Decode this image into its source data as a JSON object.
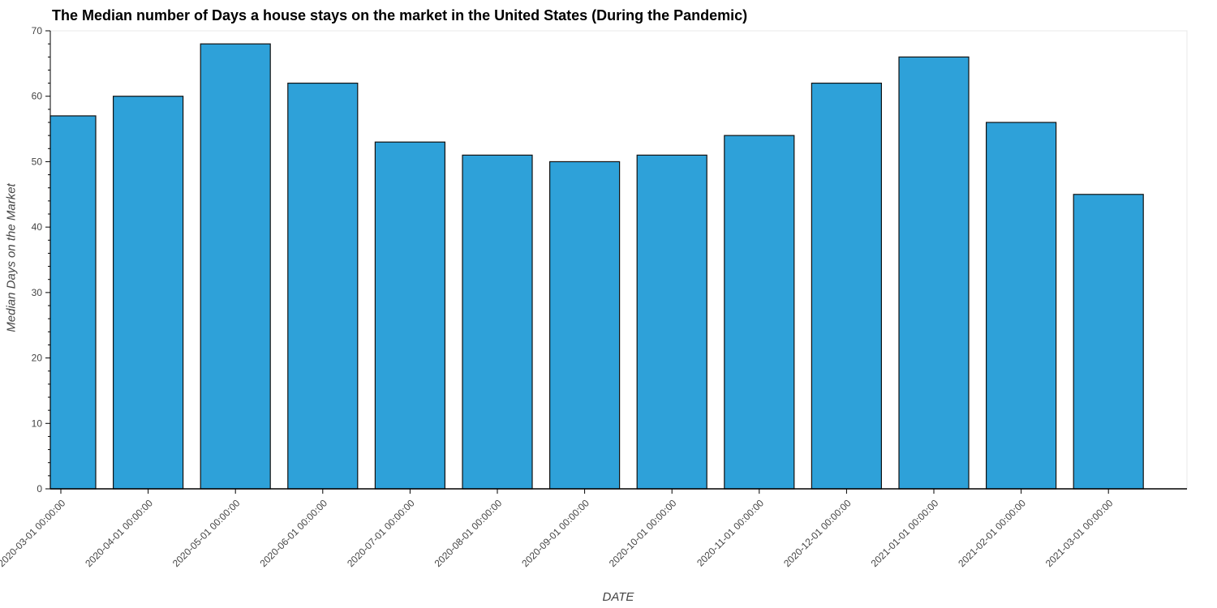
{
  "chart_data": {
    "type": "bar",
    "title": "The Median number of Days a house stays on the market in the United States (During the Pandemic)",
    "xlabel": "DATE",
    "ylabel": "Median Days on the Market",
    "categories": [
      "2020-03-01 00:00:00",
      "2020-04-01 00:00:00",
      "2020-05-01 00:00:00",
      "2020-06-01 00:00:00",
      "2020-07-01 00:00:00",
      "2020-08-01 00:00:00",
      "2020-09-01 00:00:00",
      "2020-10-01 00:00:00",
      "2020-11-01 00:00:00",
      "2020-12-01 00:00:00",
      "2021-01-01 00:00:00",
      "2021-02-01 00:00:00",
      "2021-03-01 00:00:00"
    ],
    "values": [
      57,
      60,
      68,
      62,
      53,
      51,
      50,
      51,
      54,
      62,
      66,
      56,
      45
    ],
    "ylim": [
      0,
      70
    ],
    "yticks": [
      0,
      10,
      20,
      30,
      40,
      50,
      60,
      70
    ],
    "grid": false,
    "legend": false,
    "bar_color": "#2ea1d9",
    "bar_edge_color": "#111111"
  }
}
